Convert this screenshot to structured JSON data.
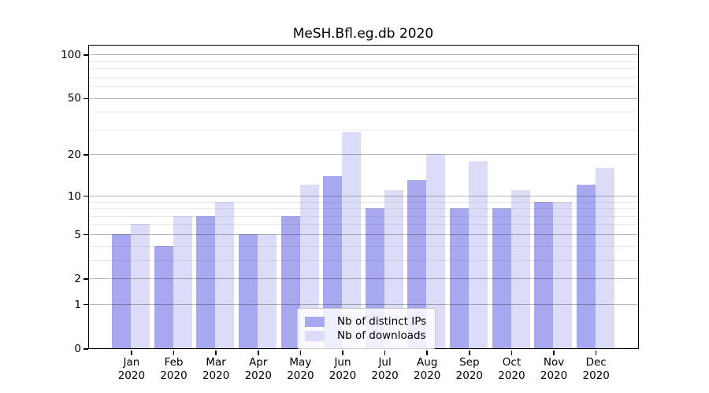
{
  "figure": {
    "background": "#ffffff"
  },
  "chart_data": {
    "type": "bar",
    "title": "MeSH.Bfl.eg.db 2020",
    "categories": [
      "Jan 2020",
      "Feb 2020",
      "Mar 2020",
      "Apr 2020",
      "May 2020",
      "Jun 2020",
      "Jul 2020",
      "Aug 2020",
      "Sep 2020",
      "Oct 2020",
      "Nov 2020",
      "Dec 2020"
    ],
    "series": [
      {
        "name": "Nb of distinct IPs",
        "color": "#a8a8f0",
        "values": [
          5,
          4,
          7,
          5,
          7,
          14,
          8,
          13,
          8,
          8,
          9,
          12
        ]
      },
      {
        "name": "Nb of downloads",
        "color": "#dcdcf8",
        "values": [
          6,
          7,
          9,
          5,
          12,
          29,
          11,
          20,
          18,
          11,
          9,
          16
        ]
      }
    ],
    "xlabel": "",
    "ylabel": "",
    "yscale": "log1p",
    "ylim": [
      0,
      115
    ],
    "yticks": [
      0,
      1,
      2,
      5,
      10,
      20,
      50,
      100
    ],
    "yticks_minor": [
      3,
      4,
      6,
      7,
      8,
      9,
      30,
      40,
      60,
      70,
      80,
      90
    ],
    "grid": "horizontal major+minor",
    "legend_position": "lower center"
  },
  "legend": {
    "items": [
      {
        "label": "Nb of distinct IPs",
        "color": "#a8a8f0"
      },
      {
        "label": "Nb of downloads",
        "color": "#dcdcf8"
      }
    ]
  },
  "colors": {
    "bar_distinct_ips": "#a8a8f0",
    "bar_downloads": "#dcdcf8",
    "grid_major": "#bababa",
    "grid_minor": "#e9e9e9",
    "spine": "#000000",
    "text": "#000000",
    "legend_border": "#cccccc"
  }
}
